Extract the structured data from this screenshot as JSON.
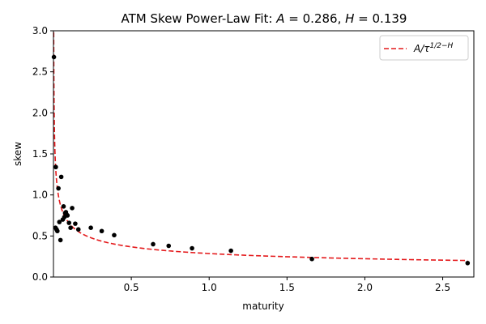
{
  "chart_data": {
    "type": "scatter",
    "title": "ATM Skew Power-Law Fit: A = 0.286, H = 0.139",
    "xlabel": "maturity",
    "ylabel": "skew",
    "xlim": [
      0,
      2.7
    ],
    "ylim": [
      0,
      3.0
    ],
    "xticks": [
      0.5,
      1.0,
      1.5,
      2.0,
      2.5
    ],
    "xtick_labels": [
      "0.5",
      "1.0",
      "1.5",
      "2.0",
      "2.5"
    ],
    "yticks": [
      0.0,
      0.5,
      1.0,
      1.5,
      2.0,
      2.5,
      3.0
    ],
    "ytick_labels": [
      "0.0",
      "0.5",
      "1.0",
      "1.5",
      "2.0",
      "2.5",
      "3.0"
    ],
    "grid": false,
    "legend_position": "top-right",
    "fit": {
      "label": "A/τ^(1/2−H)",
      "A": 0.286,
      "H": 0.139,
      "style": "dashed",
      "color": "#e41a1c"
    },
    "series": [
      {
        "color": "#000000",
        "x": [
          0.003,
          0.013,
          0.015,
          0.02,
          0.025,
          0.032,
          0.038,
          0.045,
          0.05,
          0.06,
          0.065,
          0.07,
          0.075,
          0.08,
          0.085,
          0.09,
          0.1,
          0.11,
          0.12,
          0.14,
          0.16,
          0.24,
          0.31,
          0.39,
          0.64,
          0.74,
          0.89,
          1.14,
          1.66,
          2.66
        ],
        "y": [
          2.68,
          0.6,
          1.34,
          0.58,
          0.56,
          1.08,
          0.67,
          0.45,
          1.22,
          0.7,
          0.86,
          0.73,
          0.78,
          0.79,
          0.76,
          0.75,
          0.66,
          0.6,
          0.84,
          0.65,
          0.58,
          0.6,
          0.56,
          0.51,
          0.4,
          0.38,
          0.35,
          0.32,
          0.22,
          0.17
        ]
      }
    ]
  }
}
